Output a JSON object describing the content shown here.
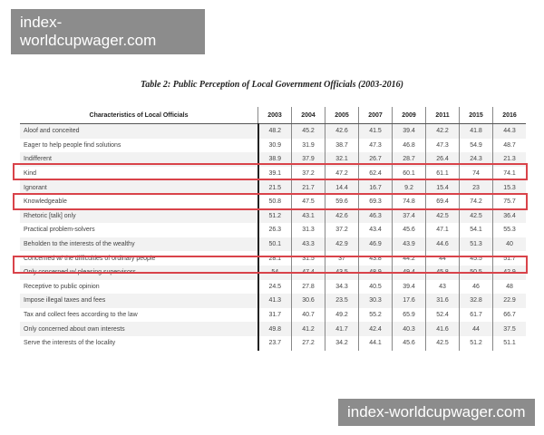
{
  "watermark": "index-worldcupwager.com",
  "title": "Table 2: Public Perception of Local Government Officials (2003-2016)",
  "table": {
    "header": [
      "Characteristics of Local Officials",
      "2003",
      "2004",
      "2005",
      "2007",
      "2009",
      "2011",
      "2015",
      "2016"
    ],
    "rows": [
      [
        "Aloof and conceited",
        "48.2",
        "45.2",
        "42.6",
        "41.5",
        "39.4",
        "42.2",
        "41.8",
        "44.3"
      ],
      [
        "Eager to help people find solutions",
        "30.9",
        "31.9",
        "38.7",
        "47.3",
        "46.8",
        "47.3",
        "54.9",
        "48.7"
      ],
      [
        "Indifferent",
        "38.9",
        "37.9",
        "32.1",
        "26.7",
        "28.7",
        "26.4",
        "24.3",
        "21.3"
      ],
      [
        "Kind",
        "39.1",
        "37.2",
        "47.2",
        "62.4",
        "60.1",
        "61.1",
        "74",
        "74.1"
      ],
      [
        "Ignorant",
        "21.5",
        "21.7",
        "14.4",
        "16.7",
        "9.2",
        "15.4",
        "23",
        "15.3"
      ],
      [
        "Knowledgeable",
        "50.8",
        "47.5",
        "59.6",
        "69.3",
        "74.8",
        "69.4",
        "74.2",
        "75.7"
      ],
      [
        "Rhetoric [talk] only",
        "51.2",
        "43.1",
        "42.6",
        "46.3",
        "37.4",
        "42.5",
        "42.5",
        "36.4"
      ],
      [
        "Practical problem-solvers",
        "26.3",
        "31.3",
        "37.2",
        "43.4",
        "45.6",
        "47.1",
        "54.1",
        "55.3"
      ],
      [
        "Beholden to the interests of the wealthy",
        "50.1",
        "43.3",
        "42.9",
        "46.9",
        "43.9",
        "44.6",
        "51.3",
        "40"
      ],
      [
        "Concerned w/ the difficulties of ordinary people",
        "28.1",
        "31.5",
        "37",
        "43.8",
        "44.2",
        "44",
        "45.5",
        "51.7"
      ],
      [
        "Only concerned w/ pleasing supervisors",
        "54",
        "47.4",
        "43.5",
        "48.9",
        "49.4",
        "45.8",
        "50.5",
        "42.9"
      ],
      [
        "Receptive to public opinion",
        "24.5",
        "27.8",
        "34.3",
        "40.5",
        "39.4",
        "43",
        "46",
        "48"
      ],
      [
        "Impose illegal taxes and fees",
        "41.3",
        "30.6",
        "23.5",
        "30.3",
        "17.6",
        "31.6",
        "32.8",
        "22.9"
      ],
      [
        "Tax and collect fees according to the law",
        "31.7",
        "40.7",
        "49.2",
        "55.2",
        "65.9",
        "52.4",
        "61.7",
        "66.7"
      ],
      [
        "Only concerned about own interests",
        "49.8",
        "41.2",
        "41.7",
        "42.4",
        "40.3",
        "41.6",
        "44",
        "37.5"
      ],
      [
        "Serve the interests of the locality",
        "23.7",
        "27.2",
        "34.2",
        "44.1",
        "45.6",
        "42.5",
        "51.2",
        "51.1"
      ]
    ]
  },
  "highlight_color": "#d9434a",
  "highlighted_rows": [
    "Kind",
    "Knowledgeable",
    "Concerned w/ the difficulties of ordinary people"
  ]
}
